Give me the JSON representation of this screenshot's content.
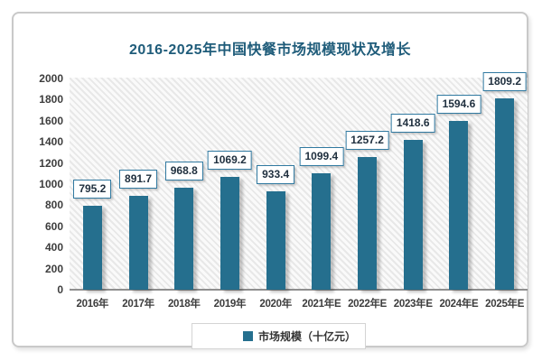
{
  "chart_data": {
    "type": "bar",
    "title": "2016-2025年中国快餐市场规模现状及增长",
    "categories": [
      "2016年",
      "2017年",
      "2018年",
      "2019年",
      "2020年",
      "2021年E",
      "2022年E",
      "2023年E",
      "2024年E",
      "2025年E"
    ],
    "values": [
      795.2,
      891.7,
      968.8,
      1069.2,
      933.4,
      1099.4,
      1257.2,
      1418.6,
      1594.6,
      1809.2
    ],
    "series_name": "市场规模（十亿元）",
    "xlabel": "",
    "ylabel": "",
    "ylim": [
      0,
      2000
    ],
    "yticks": [
      0,
      200,
      400,
      600,
      800,
      1000,
      1200,
      1400,
      1600,
      1800,
      2000
    ],
    "grid": false,
    "legend_position": "bottom",
    "value_labels": "boxed above bars",
    "colors": {
      "bar": "#256f8e",
      "title": "#1f5c7a",
      "label_box_border": "#3079a0",
      "label_text": "#20303f",
      "axis_line": "#8f8f8f",
      "tick_text": "#3d3d3d"
    }
  }
}
